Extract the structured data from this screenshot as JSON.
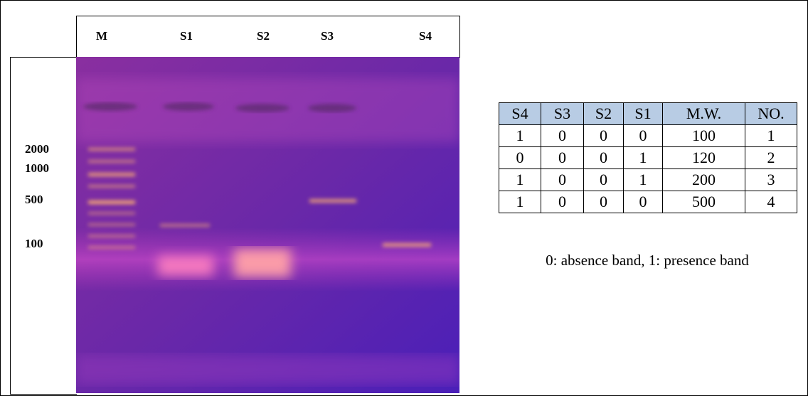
{
  "gel": {
    "lanes": [
      "M",
      "S1",
      "S2",
      "S3",
      "S4"
    ],
    "markers": [
      "2000",
      "1000",
      "500",
      "100"
    ]
  },
  "table": {
    "header": [
      "S4",
      "S3",
      "S2",
      "S1",
      "M.W.",
      "NO."
    ],
    "rows": [
      [
        "1",
        "0",
        "0",
        "0",
        "100",
        "1"
      ],
      [
        "0",
        "0",
        "0",
        "1",
        "120",
        "2"
      ],
      [
        "1",
        "0",
        "0",
        "1",
        "200",
        "3"
      ],
      [
        "1",
        "0",
        "0",
        "0",
        "500",
        "4"
      ]
    ]
  },
  "caption": "0: absence band, 1: presence band"
}
